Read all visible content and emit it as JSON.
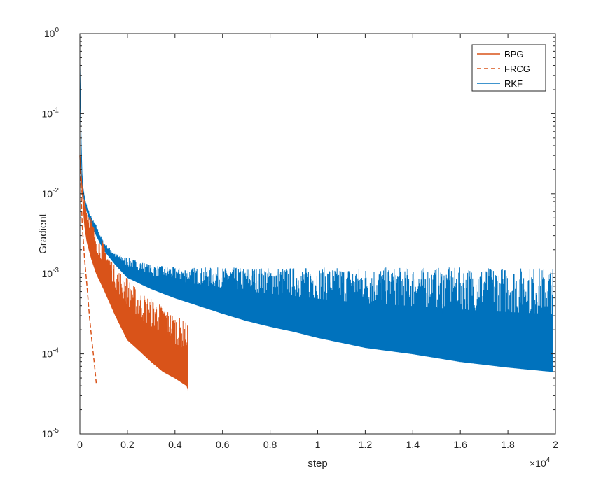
{
  "chart_data": {
    "type": "line",
    "xlabel": "step",
    "ylabel": "Gradient",
    "xscale_label": "×10",
    "xscale_exponent": "4",
    "xlim": [
      0,
      20000
    ],
    "ylim": [
      1e-05,
      1
    ],
    "yscale": "log",
    "grid": false,
    "legend_position": "top-right",
    "x_ticks": [
      {
        "value": 0,
        "label": "0"
      },
      {
        "value": 2000,
        "label": "0.2"
      },
      {
        "value": 4000,
        "label": "0.4"
      },
      {
        "value": 6000,
        "label": "0.6"
      },
      {
        "value": 8000,
        "label": "0.8"
      },
      {
        "value": 10000,
        "label": "1"
      },
      {
        "value": 12000,
        "label": "1.2"
      },
      {
        "value": 14000,
        "label": "1.4"
      },
      {
        "value": 16000,
        "label": "1.6"
      },
      {
        "value": 18000,
        "label": "1.8"
      },
      {
        "value": 20000,
        "label": "2"
      }
    ],
    "y_ticks": [
      {
        "value": 1e-05,
        "base": "10",
        "exp": "-5"
      },
      {
        "value": 0.0001,
        "base": "10",
        "exp": "-4"
      },
      {
        "value": 0.001,
        "base": "10",
        "exp": "-3"
      },
      {
        "value": 0.01,
        "base": "10",
        "exp": "-2"
      },
      {
        "value": 0.1,
        "base": "10",
        "exp": "-1"
      },
      {
        "value": 1,
        "base": "10",
        "exp": "0"
      }
    ],
    "series": [
      {
        "name": "BPG",
        "color": "#d95319",
        "style": "solid",
        "x": [
          0,
          100,
          200,
          300,
          500,
          700,
          1000,
          1500,
          2000,
          2500,
          3000,
          3500,
          4000,
          4500,
          4550
        ],
        "y_lower": [
          0.03,
          0.01,
          0.004,
          0.0025,
          0.0015,
          0.001,
          0.00065,
          0.0003,
          0.00015,
          0.00011,
          8e-05,
          6e-05,
          5e-05,
          4e-05,
          3.5e-05
        ],
        "y_upper": [
          0.03,
          0.012,
          0.009,
          0.007,
          0.005,
          0.003,
          0.0025,
          0.0012,
          0.0009,
          0.0006,
          0.0005,
          0.0004,
          0.0003,
          0.00025,
          0.00025
        ]
      },
      {
        "name": "FRCG",
        "color": "#d95319",
        "style": "dashed",
        "x": [
          0,
          100,
          200,
          300,
          400,
          500,
          600,
          700
        ],
        "y": [
          0.03,
          0.004,
          0.0015,
          0.0007,
          0.0003,
          0.00015,
          8e-05,
          4e-05
        ]
      },
      {
        "name": "RKF",
        "color": "#0072bd",
        "style": "solid",
        "x": [
          0,
          50,
          100,
          200,
          300,
          500,
          700,
          1000,
          1500,
          2000,
          3000,
          4000,
          5000,
          6000,
          7000,
          8000,
          9000,
          10000,
          12000,
          14000,
          16000,
          18000,
          19900
        ],
        "y_lower": [
          0.4,
          0.05,
          0.012,
          0.008,
          0.006,
          0.004,
          0.003,
          0.002,
          0.0013,
          0.0009,
          0.00065,
          0.0005,
          0.0004,
          0.00032,
          0.00026,
          0.00022,
          0.00019,
          0.00016,
          0.00012,
          0.0001,
          8e-05,
          6.8e-05,
          6e-05
        ],
        "y_upper": [
          0.4,
          0.05,
          0.015,
          0.009,
          0.007,
          0.005,
          0.004,
          0.0025,
          0.0018,
          0.0016,
          0.0013,
          0.0012,
          0.0012,
          0.0012,
          0.0012,
          0.0012,
          0.0012,
          0.0012,
          0.0012,
          0.0012,
          0.0012,
          0.0012,
          0.0012
        ]
      }
    ]
  }
}
